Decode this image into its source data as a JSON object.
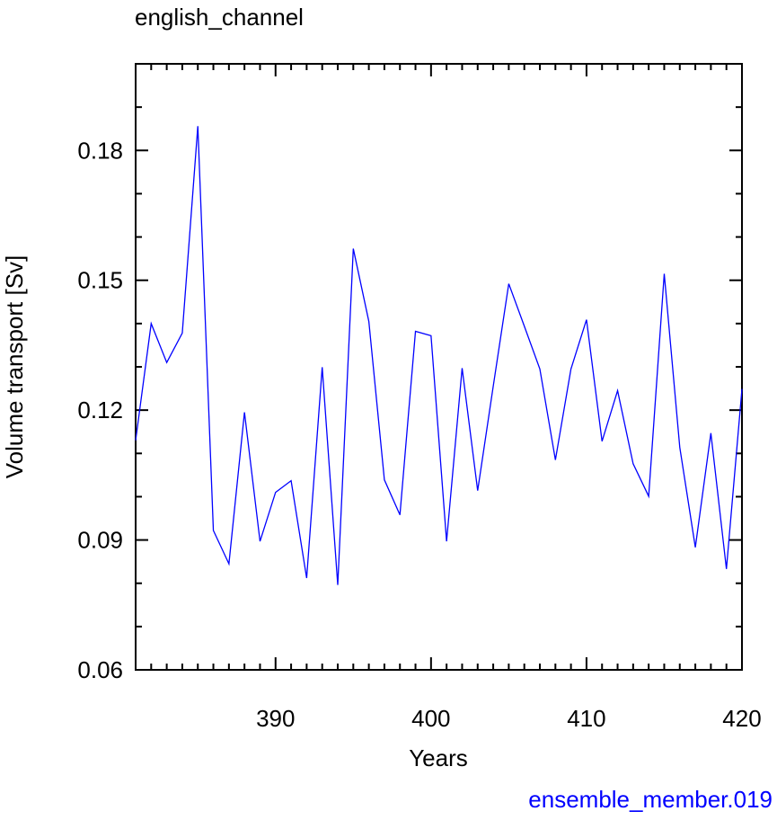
{
  "chart_data": {
    "type": "line",
    "title": "english_channel",
    "xlabel": "Years",
    "ylabel": "Volume transport [Sv]",
    "annotation": "ensemble_member.019",
    "x": [
      381,
      382,
      383,
      384,
      385,
      386,
      387,
      388,
      389,
      390,
      391,
      392,
      393,
      394,
      395,
      396,
      397,
      398,
      399,
      400,
      401,
      402,
      403,
      404,
      405,
      406,
      407,
      408,
      409,
      410,
      411,
      412,
      413,
      414,
      415,
      416,
      417,
      418,
      419,
      420
    ],
    "values": [
      0.113,
      0.14,
      0.131,
      0.1378,
      0.1856,
      0.0922,
      0.0845,
      0.1195,
      0.0897,
      0.101,
      0.1037,
      0.0812,
      0.1299,
      0.0796,
      0.1573,
      0.1405,
      0.1039,
      0.0958,
      0.1382,
      0.1372,
      0.0897,
      0.1297,
      0.1014,
      0.1255,
      0.1492,
      0.1394,
      0.1295,
      0.1085,
      0.1295,
      0.1409,
      0.1128,
      0.1245,
      0.1076,
      0.1001,
      0.1515,
      0.1114,
      0.0883,
      0.1147,
      0.0833,
      0.1249
    ],
    "color": "#0000ff",
    "xlim": [
      381,
      420
    ],
    "xticks": [
      390,
      400,
      410,
      420
    ],
    "xminorticks": [
      382,
      383,
      384,
      385,
      386,
      387,
      388,
      389,
      391,
      392,
      393,
      394,
      395,
      396,
      397,
      398,
      399,
      401,
      402,
      403,
      404,
      405,
      406,
      407,
      408,
      409,
      411,
      412,
      413,
      414,
      415,
      416,
      417,
      418,
      419
    ],
    "ylim": [
      0.06,
      0.2
    ],
    "yticks": [
      0.06,
      0.09,
      0.12,
      0.15,
      0.18
    ],
    "yminorticks": [
      0.07,
      0.08,
      0.1,
      0.11,
      0.13,
      0.14,
      0.16,
      0.17,
      0.19
    ]
  }
}
